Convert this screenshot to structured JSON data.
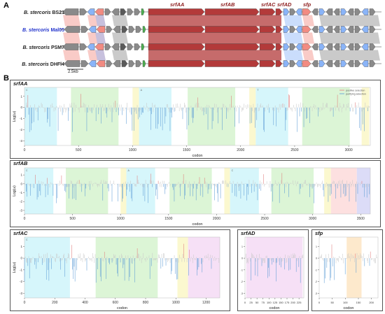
{
  "figure": {
    "panel_a_letter": "A",
    "panel_b_letter": "B",
    "strains": [
      {
        "genus": "B.",
        "species": "stercoris",
        "strain": "BS21",
        "highlight": false
      },
      {
        "genus": "B.",
        "species": "stercoris",
        "strain": "Mal05",
        "highlight": true
      },
      {
        "genus": "B.",
        "species": "stercoris",
        "strain": "PSM7",
        "highlight": false
      },
      {
        "genus": "B.",
        "species": "stercoris",
        "strain": "DHFl4",
        "highlight": false
      }
    ],
    "gene_labels": [
      "srfAA",
      "srfAB",
      "srfAC",
      "srfAD",
      "sfp"
    ],
    "scale_bar": "2.5kb",
    "colors": {
      "srf_operon": "#b33a3a",
      "pink": "#f28b82",
      "blue": "#8ab4f8",
      "gray": "#8a8a8a",
      "dark_gray": "#5a5a5a",
      "green": "#4caf50",
      "teal_bg": "#d6f6fb",
      "green_bg": "#dcf5d6",
      "yellow_bg": "#fbf8cf",
      "pink_bg": "#fde0e0",
      "violet_bg": "#dcdcf7",
      "orchid_bg": "#f6e0f6",
      "orange_bg": "#fde9cc",
      "neg_bar": "#5b9bd5",
      "pos_bar": "#e07a7a",
      "neutral_bar": "#c8c8c8"
    }
  },
  "chart_data": [
    {
      "type": "bar",
      "title": "srfAA",
      "xlabel": "codon",
      "ylabel": "Log(ω)",
      "xticks": [
        0,
        500,
        1000,
        1500,
        2000,
        2500,
        3000
      ],
      "xlim": [
        0,
        3200
      ],
      "yticks": [
        1,
        0,
        -1,
        -2,
        -3
      ],
      "ylim": [
        -3.4,
        1.8
      ],
      "legend": [
        "positive selection",
        "purifying selection"
      ],
      "domain_labels": [
        "C",
        "A",
        "T"
      ],
      "domains": [
        {
          "start": 0,
          "end": 300,
          "color": "teal_bg"
        },
        {
          "start": 430,
          "end": 870,
          "color": "green_bg"
        },
        {
          "start": 1000,
          "end": 1060,
          "color": "yellow_bg"
        },
        {
          "start": 1060,
          "end": 1360,
          "color": "teal_bg"
        },
        {
          "start": 1510,
          "end": 1950,
          "color": "green_bg"
        },
        {
          "start": 2080,
          "end": 2140,
          "color": "yellow_bg"
        },
        {
          "start": 2140,
          "end": 2440,
          "color": "teal_bg"
        },
        {
          "start": 2570,
          "end": 3010,
          "color": "green_bg"
        },
        {
          "start": 3120,
          "end": 3190,
          "color": "yellow_bg"
        }
      ]
    },
    {
      "type": "bar",
      "title": "srfAB",
      "xlabel": "codon",
      "ylabel": "Log(ω)",
      "xticks": [
        0,
        500,
        1000,
        1500,
        2000,
        2500,
        3000,
        3500
      ],
      "xlim": [
        0,
        3600
      ],
      "yticks": [
        1,
        0,
        -1,
        -2,
        -3
      ],
      "ylim": [
        -3.4,
        1.8
      ],
      "domain_labels": [
        "C",
        "A",
        "C"
      ],
      "domains": [
        {
          "start": 0,
          "end": 300,
          "color": "teal_bg"
        },
        {
          "start": 430,
          "end": 870,
          "color": "green_bg"
        },
        {
          "start": 1000,
          "end": 1060,
          "color": "yellow_bg"
        },
        {
          "start": 1060,
          "end": 1360,
          "color": "teal_bg"
        },
        {
          "start": 1510,
          "end": 1950,
          "color": "green_bg"
        },
        {
          "start": 2080,
          "end": 2140,
          "color": "yellow_bg"
        },
        {
          "start": 2140,
          "end": 2440,
          "color": "teal_bg"
        },
        {
          "start": 2570,
          "end": 3010,
          "color": "green_bg"
        },
        {
          "start": 3120,
          "end": 3190,
          "color": "yellow_bg"
        },
        {
          "start": 3190,
          "end": 3460,
          "color": "pink_bg"
        },
        {
          "start": 3460,
          "end": 3600,
          "color": "violet_bg"
        }
      ]
    },
    {
      "type": "bar",
      "title": "srfAC",
      "xlabel": "codon",
      "ylabel": "Log(ω)",
      "xticks": [
        0,
        200,
        400,
        600,
        800,
        1000,
        1200
      ],
      "xlim": [
        0,
        1290
      ],
      "yticks": [
        1,
        0,
        -1,
        -2,
        -3
      ],
      "ylim": [
        -3.4,
        1.8
      ],
      "domain_labels": [
        "C"
      ],
      "domains": [
        {
          "start": 0,
          "end": 300,
          "color": "teal_bg"
        },
        {
          "start": 470,
          "end": 880,
          "color": "green_bg"
        },
        {
          "start": 1010,
          "end": 1080,
          "color": "yellow_bg"
        },
        {
          "start": 1080,
          "end": 1290,
          "color": "orchid_bg"
        }
      ]
    },
    {
      "type": "bar",
      "title": "srfAD",
      "xlabel": "codon",
      "ylabel": "",
      "xticks": [
        0,
        25,
        50,
        75,
        100,
        125,
        150,
        175,
        200,
        225
      ],
      "xlim": [
        0,
        245
      ],
      "yticks": [
        1,
        0,
        -1,
        -2,
        -3
      ],
      "ylim": [
        -3.4,
        1.8
      ],
      "domains": [
        {
          "start": 5,
          "end": 240,
          "color": "orchid_bg"
        }
      ]
    },
    {
      "type": "bar",
      "title": "sfp",
      "xlabel": "codon",
      "ylabel": "",
      "xticks": [
        0,
        50,
        100,
        150,
        200
      ],
      "xlim": [
        0,
        225
      ],
      "yticks": [
        1,
        0,
        -1,
        -2,
        -3
      ],
      "ylim": [
        -3.4,
        1.8
      ],
      "domains": [
        {
          "start": 105,
          "end": 162,
          "color": "orange_bg"
        }
      ]
    }
  ]
}
